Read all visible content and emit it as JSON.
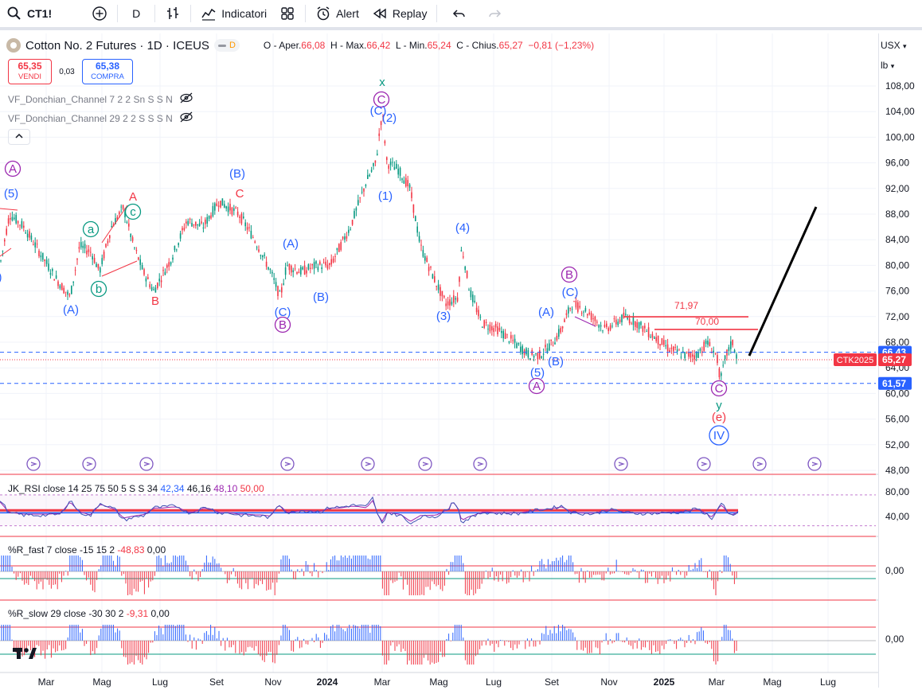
{
  "toolbar": {
    "symbol": "CT1!",
    "interval": "D",
    "indicators_label": "Indicatori",
    "alert_label": "Alert",
    "replay_label": "Replay"
  },
  "legend": {
    "title": "Cotton No. 2 Futures · 1D · ICEUS",
    "badge": "D",
    "open_label": "O - Aper.",
    "open": "66,08",
    "high_label": "H - Max.",
    "high": "66,42",
    "low_label": "L - Min.",
    "low": "65,24",
    "close_label": "C - Chius.",
    "close": "65,27",
    "change": "−0,81 (−1,23%)"
  },
  "trade": {
    "sell_price": "65,35",
    "sell_label": "VENDI",
    "spread": "0,03",
    "buy_price": "65,38",
    "buy_label": "COMPRA"
  },
  "overlays": [
    {
      "label": "VF_Donchian_Channel 7 2 2 Sn S S N"
    },
    {
      "label": "VF_Donchian_Channel 29 2 2 S S S N"
    }
  ],
  "scale": {
    "currency": "USX",
    "unit": "lb",
    "ticks": [
      "108,00",
      "104,00",
      "100,00",
      "96,00",
      "92,00",
      "88,00",
      "84,00",
      "80,00",
      "76,00",
      "72,00",
      "68,00",
      "64,00",
      "60,00",
      "56,00",
      "52,00",
      "48,00"
    ],
    "tick_values": [
      108,
      104,
      100,
      96,
      92,
      88,
      84,
      80,
      76,
      72,
      68,
      64,
      60,
      56,
      52,
      48
    ],
    "badges": [
      {
        "text": "66,43",
        "value": 66.43,
        "color": "#2962ff"
      },
      {
        "text": "65,27",
        "value": 65.27,
        "color": "#f23645"
      },
      {
        "text": "61,57",
        "value": 61.57,
        "color": "#2962ff"
      }
    ],
    "ctk_label": "CTK2025"
  },
  "levels": [
    {
      "text": "71,97",
      "value": 71.97
    },
    {
      "text": "70,00",
      "value": 70.0
    }
  ],
  "x_axis": [
    "Mar",
    "Mag",
    "Lug",
    "Set",
    "Nov",
    "2024",
    "Mar",
    "Mag",
    "Lug",
    "Set",
    "Nov",
    "2025",
    "Mar",
    "Mag",
    "Lug"
  ],
  "wave_labels": [
    {
      "text": "x",
      "color": "#089981",
      "circle": false
    },
    {
      "text": "C",
      "color": "#9c27b0",
      "circle": true
    },
    {
      "text": "(C)",
      "color": "#2962ff",
      "circle": false
    },
    {
      "text": "(2)",
      "color": "#2962ff",
      "circle": false
    },
    {
      "text": "(1)",
      "color": "#2962ff",
      "circle": false
    },
    {
      "text": "A",
      "color": "#9c27b0",
      "circle": true
    },
    {
      "text": "(5)",
      "color": "#2962ff",
      "circle": false
    },
    {
      "text": "(B)",
      "color": "#2962ff",
      "circle": false
    },
    {
      "text": "C",
      "color": "#f23645",
      "circle": false
    },
    {
      "text": "A",
      "color": "#f23645",
      "circle": false
    },
    {
      "text": "c",
      "color": "#089981",
      "circle": true
    },
    {
      "text": "a",
      "color": "#089981",
      "circle": true
    },
    {
      "text": "b",
      "color": "#089981",
      "circle": true
    },
    {
      "text": "(A)",
      "color": "#2962ff",
      "circle": false
    },
    {
      "text": "B",
      "color": "#f23645",
      "circle": false
    },
    {
      "text": "(A)",
      "color": "#2962ff",
      "circle": false
    },
    {
      "text": "(C)",
      "color": "#2962ff",
      "circle": false
    },
    {
      "text": "B",
      "color": "#9c27b0",
      "circle": true
    },
    {
      "text": "(B)",
      "color": "#2962ff",
      "circle": false
    },
    {
      "text": "(4)",
      "color": "#2962ff",
      "circle": false
    },
    {
      "text": "(3)",
      "color": "#2962ff",
      "circle": false
    },
    {
      "text": "B",
      "color": "#9c27b0",
      "circle": true
    },
    {
      "text": "(C)",
      "color": "#2962ff",
      "circle": false
    },
    {
      "text": "(A)",
      "color": "#2962ff",
      "circle": false
    },
    {
      "text": "(B)",
      "color": "#2962ff",
      "circle": false
    },
    {
      "text": "(5)",
      "color": "#2962ff",
      "circle": false
    },
    {
      "text": "A",
      "color": "#9c27b0",
      "circle": true
    },
    {
      "text": "C",
      "color": "#9c27b0",
      "circle": true
    },
    {
      "text": "y",
      "color": "#089981",
      "circle": false
    },
    {
      "text": "(e)",
      "color": "#f23645",
      "circle": false
    },
    {
      "text": "IV",
      "color": "#2962ff",
      "circle": true
    },
    {
      "text": ")",
      "color": "#2962ff",
      "circle": false
    }
  ],
  "panes": {
    "rsi": {
      "name": "JK_RSI close 14 25 75 50 5 S S 34",
      "v1": "42,34",
      "v2": "46,16",
      "v3": "48,10",
      "v4": "50,00",
      "ticks": [
        "80,00",
        "40,00"
      ]
    },
    "rfast": {
      "name": "%R_fast 7 close -15 15 2",
      "v1": "-48,83",
      "v2": "0,00",
      "ticks": [
        "0,00"
      ]
    },
    "rslow": {
      "name": "%R_slow 29 close -30 30 2",
      "v1": "-9,31",
      "v2": "0,00",
      "ticks": [
        "0,00"
      ]
    }
  },
  "colors": {
    "up": "#089981",
    "down": "#f23645",
    "blue": "#2962ff",
    "purple": "#9c27b0",
    "projection": "#000000"
  }
}
